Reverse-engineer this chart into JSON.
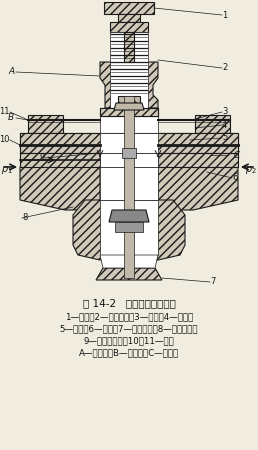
{
  "title": "图 14-2   内部先导式减压阀",
  "caption_lines": [
    "1—旋鈕；2—调压弹簧；3—挡板；4—喀嘴；",
    "5—孔道；6—阀芯；7—排气阀口；8—进气阀口；",
    "9—固定节流孔；10、11—膜片",
    "A—上气室；B—中气室；C—下气室"
  ],
  "bg_color": "#f0ece0",
  "text_color": "#111111",
  "title_fontsize": 7.5,
  "caption_fontsize": 6.2,
  "fig_width": 2.58,
  "fig_height": 4.5,
  "dpi": 100
}
